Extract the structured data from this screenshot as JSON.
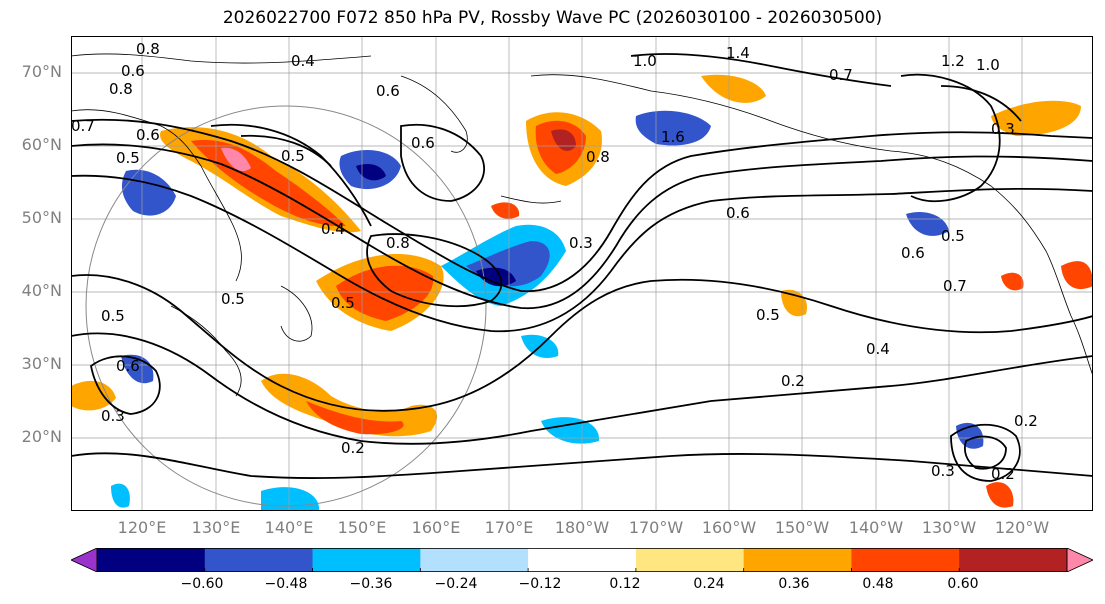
{
  "title": "2026022700 F072 850 hPa PV, Rossby Wave PC (2026030100 - 2026030500)",
  "lat_labels": [
    "70°N",
    "60°N",
    "50°N",
    "40°N",
    "30°N",
    "20°N"
  ],
  "lon_labels": [
    "120°E",
    "130°E",
    "140°E",
    "150°E",
    "160°E",
    "170°E",
    "180°W",
    "170°W",
    "160°W",
    "150°W",
    "140°W",
    "130°W",
    "120°W"
  ],
  "colorbar": {
    "colors": [
      "#9933cc",
      "#000080",
      "#3355cc",
      "#00bfff",
      "#b3e0ff",
      "#ffffff",
      "#ffe680",
      "#ffa500",
      "#ff4500",
      "#b22222",
      "#ff88aa"
    ],
    "ticks": [
      "−0.60",
      "−0.48",
      "−0.36",
      "−0.24",
      "−0.12",
      "0.12",
      "0.24",
      "0.36",
      "0.48",
      "0.60"
    ]
  },
  "contour_labels": [
    "0.8",
    "0.6",
    "0.4",
    "0.8",
    "0.7",
    "0.6",
    "0.5",
    "0.6",
    "1.0",
    "1.4",
    "0.7",
    "1.2",
    "1.0",
    "0.3",
    "1.6",
    "0.8",
    "0.6",
    "0.3",
    "0.5",
    "0.8",
    "0.5",
    "0.5",
    "0.5",
    "0.6",
    "0.3",
    "0.4",
    "0.2",
    "0.2",
    "0.5",
    "0.6",
    "0.5",
    "0.7",
    "0.2",
    "0.3",
    "0.2",
    "0.4",
    "0.6"
  ]
}
